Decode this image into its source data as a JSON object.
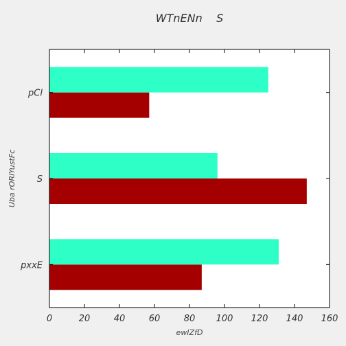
{
  "chart_data": {
    "type": "bar",
    "orientation": "horizontal",
    "title": "WTnENn    S",
    "xlabel": "ewIZfD",
    "ylabel": "Uba rORlYustFc",
    "categories": [
      "pxxE",
      "S",
      "pCl"
    ],
    "series": [
      {
        "values": [
          87,
          147,
          57
        ],
        "color": "#a50000"
      },
      {
        "values": [
          131,
          96,
          125
        ],
        "color": "#2effc6"
      }
    ],
    "xlim": [
      0,
      160
    ],
    "xticks": [
      0,
      20,
      40,
      60,
      80,
      100,
      120,
      140,
      160
    ],
    "grid": false,
    "legend": false
  },
  "colors": {
    "background": "#f0f0f0",
    "plot_background": "#ffffff",
    "axis": "#000000"
  }
}
